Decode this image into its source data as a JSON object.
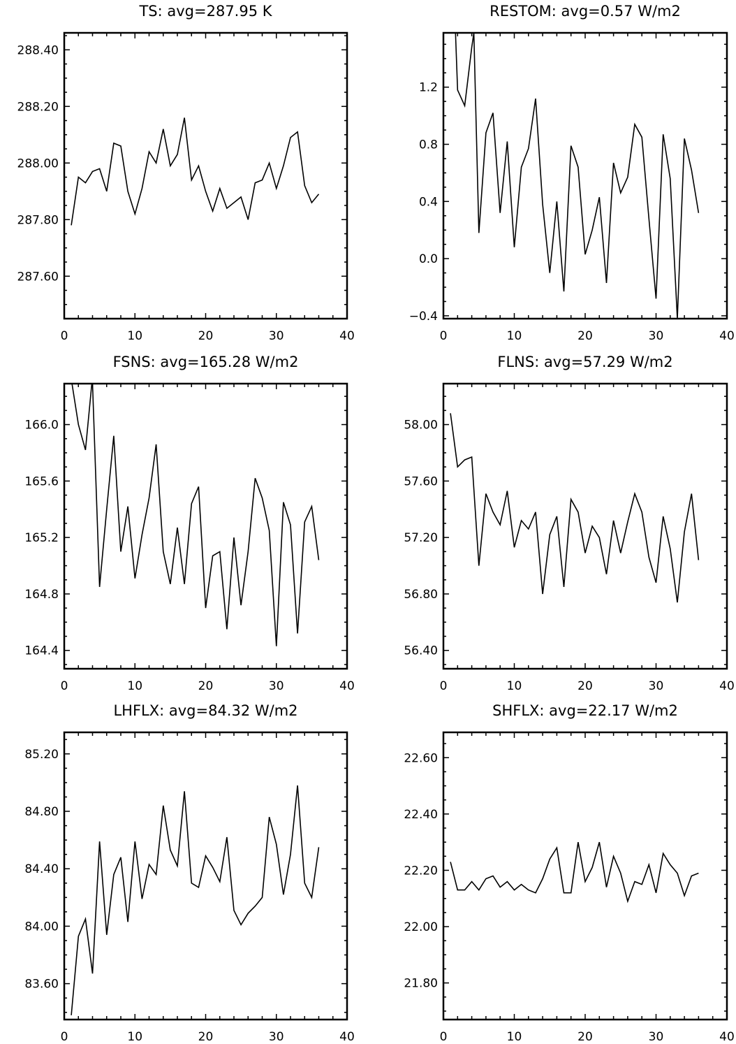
{
  "chart_data": [
    {
      "type": "line",
      "title": "TS: avg=287.95 K",
      "xlim": [
        0,
        40
      ],
      "ylim": [
        287.45,
        288.46
      ],
      "xticks": [
        0,
        10,
        20,
        30,
        40
      ],
      "yticks": [
        287.6,
        287.8,
        288.0,
        288.2,
        288.4
      ],
      "ytick_labels": [
        "287.60",
        "287.80",
        "288.00",
        "288.20",
        "288.40"
      ],
      "y_minor_step": 0.05,
      "x": [
        1,
        2,
        3,
        4,
        5,
        6,
        7,
        8,
        9,
        10,
        11,
        12,
        13,
        14,
        15,
        16,
        17,
        18,
        19,
        20,
        21,
        22,
        23,
        24,
        25,
        26,
        27,
        28,
        29,
        30,
        31,
        32,
        33,
        34,
        35,
        36
      ],
      "values": [
        287.78,
        287.95,
        287.93,
        287.97,
        287.98,
        287.9,
        288.07,
        288.06,
        287.9,
        287.82,
        287.91,
        288.04,
        288.0,
        288.12,
        287.99,
        288.03,
        288.16,
        287.94,
        287.99,
        287.9,
        287.83,
        287.91,
        287.84,
        287.86,
        287.88,
        287.8,
        287.93,
        287.94,
        288.0,
        287.91,
        287.99,
        288.09,
        288.11,
        287.92,
        287.86,
        287.89
      ]
    },
    {
      "type": "line",
      "title": "RESTOM: avg=0.57 W/m2",
      "xlim": [
        0,
        40
      ],
      "ylim": [
        -0.42,
        1.58
      ],
      "xticks": [
        0,
        10,
        20,
        30,
        40
      ],
      "yticks": [
        -0.4,
        0.0,
        0.4,
        0.8,
        1.2
      ],
      "ytick_labels": [
        "−0.4",
        "0.0",
        "0.4",
        "0.8",
        "1.2"
      ],
      "y_minor_step": 0.1,
      "x": [
        1.7,
        2,
        3,
        4,
        4.3,
        5,
        6,
        7,
        8,
        9,
        10,
        11,
        12,
        13,
        14,
        15,
        16,
        17,
        18,
        19,
        20,
        21,
        22,
        23,
        24,
        25,
        26,
        27,
        28,
        29,
        30,
        31,
        32,
        33,
        34,
        35,
        36
      ],
      "values": [
        1.58,
        1.18,
        1.07,
        1.48,
        1.58,
        0.18,
        0.88,
        1.02,
        0.32,
        0.82,
        0.08,
        0.64,
        0.77,
        1.12,
        0.38,
        -0.1,
        0.4,
        -0.23,
        0.79,
        0.64,
        0.03,
        0.2,
        0.43,
        -0.17,
        0.67,
        0.46,
        0.57,
        0.94,
        0.85,
        0.28,
        -0.28,
        0.87,
        0.56,
        -0.42,
        0.84,
        0.62,
        0.32
      ]
    },
    {
      "type": "line",
      "title": "FSNS: avg=165.28 W/m2",
      "xlim": [
        0,
        40
      ],
      "ylim": [
        164.27,
        166.29
      ],
      "xticks": [
        0,
        10,
        20,
        30,
        40
      ],
      "yticks": [
        164.4,
        164.8,
        165.2,
        165.6,
        166.0
      ],
      "ytick_labels": [
        "164.4",
        "164.8",
        "165.2",
        "165.6",
        "166.0"
      ],
      "y_minor_step": 0.1,
      "x": [
        1.1,
        2,
        3,
        3.9,
        4,
        5,
        6,
        7,
        8,
        9,
        10,
        11,
        12,
        13,
        14,
        15,
        16,
        17,
        18,
        19,
        20,
        21,
        22,
        23,
        24,
        25,
        26,
        27,
        28,
        29,
        30,
        31,
        32,
        33,
        34,
        35,
        36
      ],
      "values": [
        166.29,
        166.0,
        165.82,
        166.29,
        166.29,
        164.85,
        165.4,
        165.92,
        165.1,
        165.42,
        164.91,
        165.22,
        165.48,
        165.86,
        165.1,
        164.87,
        165.27,
        164.87,
        165.44,
        165.56,
        164.7,
        165.07,
        165.1,
        164.55,
        165.2,
        164.72,
        165.1,
        165.62,
        165.48,
        165.25,
        164.43,
        165.45,
        165.29,
        164.52,
        165.31,
        165.42,
        165.04
      ]
    },
    {
      "type": "line",
      "title": "FLNS: avg=57.29 W/m2",
      "xlim": [
        0,
        40
      ],
      "ylim": [
        56.27,
        58.29
      ],
      "xticks": [
        0,
        10,
        20,
        30,
        40
      ],
      "yticks": [
        56.4,
        56.8,
        57.2,
        57.6,
        58.0
      ],
      "ytick_labels": [
        "56.40",
        "56.80",
        "57.20",
        "57.60",
        "58.00"
      ],
      "y_minor_step": 0.1,
      "x": [
        1,
        2,
        3,
        4,
        5,
        6,
        7,
        8,
        9,
        10,
        11,
        12,
        13,
        14,
        15,
        16,
        17,
        18,
        19,
        20,
        21,
        22,
        23,
        24,
        25,
        26,
        27,
        28,
        29,
        30,
        31,
        32,
        33,
        34,
        35,
        36
      ],
      "values": [
        58.08,
        57.7,
        57.75,
        57.77,
        57.0,
        57.51,
        57.38,
        57.29,
        57.53,
        57.13,
        57.32,
        57.26,
        57.38,
        56.8,
        57.22,
        57.35,
        56.85,
        57.47,
        57.38,
        57.09,
        57.28,
        57.2,
        56.94,
        57.32,
        57.09,
        57.31,
        57.51,
        57.38,
        57.06,
        56.88,
        57.35,
        57.12,
        56.74,
        57.24,
        57.51,
        57.04
      ]
    },
    {
      "type": "line",
      "title": "LHFLX: avg=84.32 W/m2",
      "xlim": [
        0,
        40
      ],
      "ylim": [
        83.35,
        85.35
      ],
      "xticks": [
        0,
        10,
        20,
        30,
        40
      ],
      "yticks": [
        83.6,
        84.0,
        84.4,
        84.8,
        85.2
      ],
      "ytick_labels": [
        "83.60",
        "84.00",
        "84.40",
        "84.80",
        "85.20"
      ],
      "y_minor_step": 0.1,
      "x": [
        1,
        2,
        3,
        4,
        5,
        6,
        7,
        8,
        9,
        10,
        11,
        12,
        13,
        14,
        15,
        16,
        17,
        18,
        19,
        20,
        21,
        22,
        23,
        24,
        25,
        26,
        27,
        28,
        29,
        30,
        31,
        32,
        33,
        34,
        35,
        36
      ],
      "values": [
        83.38,
        83.93,
        84.05,
        83.67,
        84.59,
        83.94,
        84.36,
        84.48,
        84.03,
        84.59,
        84.19,
        84.43,
        84.36,
        84.84,
        84.53,
        84.42,
        84.94,
        84.3,
        84.27,
        84.49,
        84.41,
        84.31,
        84.62,
        84.11,
        84.01,
        84.09,
        84.14,
        84.2,
        84.76,
        84.57,
        84.22,
        84.5,
        84.98,
        84.3,
        84.2,
        84.55
      ]
    },
    {
      "type": "line",
      "title": "SHFLX: avg=22.17 W/m2",
      "xlim": [
        0,
        40
      ],
      "ylim": [
        21.67,
        22.69
      ],
      "xticks": [
        0,
        10,
        20,
        30,
        40
      ],
      "yticks": [
        21.8,
        22.0,
        22.2,
        22.4,
        22.6
      ],
      "ytick_labels": [
        "21.80",
        "22.00",
        "22.20",
        "22.40",
        "22.60"
      ],
      "y_minor_step": 0.05,
      "x": [
        1,
        2,
        3,
        4,
        5,
        6,
        7,
        8,
        9,
        10,
        11,
        12,
        13,
        14,
        15,
        16,
        17,
        18,
        19,
        20,
        21,
        22,
        23,
        24,
        25,
        26,
        27,
        28,
        29,
        30,
        31,
        32,
        33,
        34,
        35,
        36
      ],
      "values": [
        22.23,
        22.13,
        22.13,
        22.16,
        22.13,
        22.17,
        22.18,
        22.14,
        22.16,
        22.13,
        22.15,
        22.13,
        22.12,
        22.17,
        22.24,
        22.28,
        22.12,
        22.12,
        22.3,
        22.16,
        22.21,
        22.3,
        22.14,
        22.25,
        22.19,
        22.09,
        22.16,
        22.15,
        22.22,
        22.12,
        22.26,
        22.22,
        22.19,
        22.11,
        22.18,
        22.19
      ]
    }
  ]
}
